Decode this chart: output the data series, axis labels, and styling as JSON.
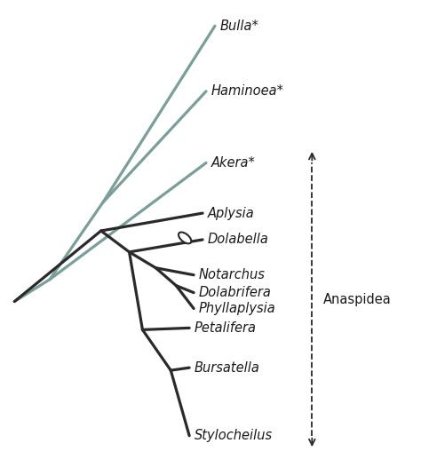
{
  "gray_green": "#7a9e9a",
  "dark": "#2a2a2a",
  "background": "#ffffff",
  "label_color": "#1a1a1a",
  "anaspidea_label": "Anaspidea",
  "taxa": [
    {
      "name": "Bulla*",
      "color": "gray_green"
    },
    {
      "name": "Haminoea*",
      "color": "gray_green"
    },
    {
      "name": "Akera*",
      "color": "gray_green"
    },
    {
      "name": "Aplysia",
      "color": "dark"
    },
    {
      "name": "Dolabella",
      "color": "dark"
    },
    {
      "name": "Notarchus",
      "color": "dark"
    },
    {
      "name": "Dolabrifera",
      "color": "dark"
    },
    {
      "name": "Phyllaplysia",
      "color": "dark"
    },
    {
      "name": "Petalifera",
      "color": "dark"
    },
    {
      "name": "Bursatella",
      "color": "dark"
    },
    {
      "name": "Stylocheilus",
      "color": "dark"
    }
  ],
  "lw": 2.3,
  "label_fontsize": 10.5
}
